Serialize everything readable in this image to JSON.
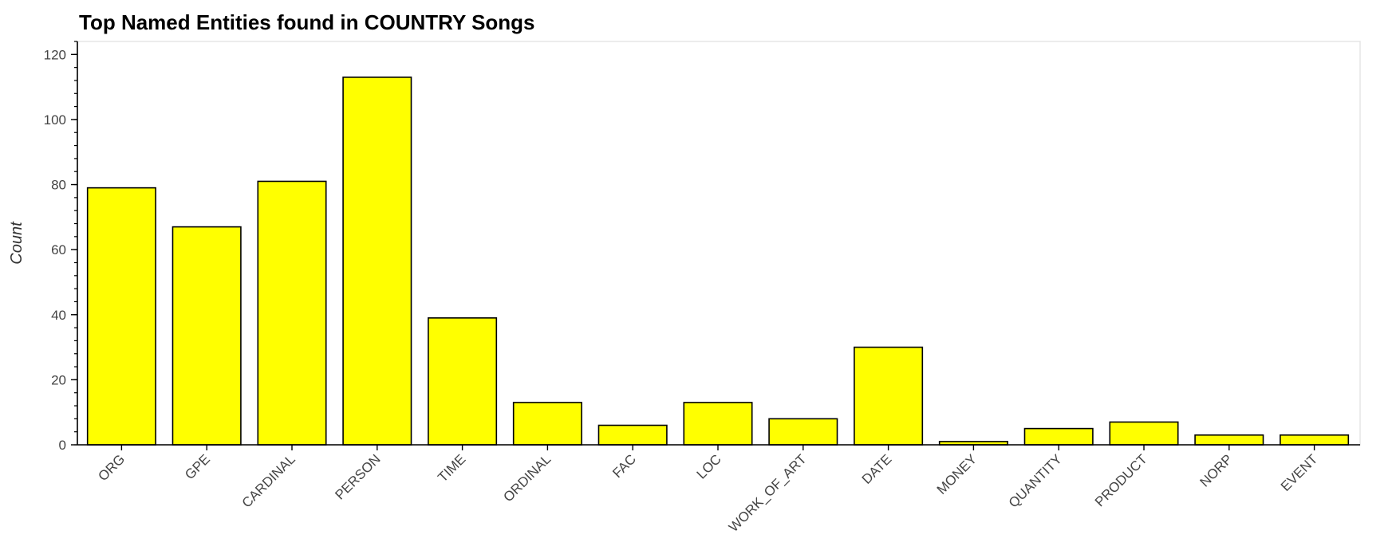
{
  "chart_data": {
    "type": "bar",
    "title": "Top Named Entities found in COUNTRY Songs",
    "xlabel": "",
    "ylabel": "Count",
    "categories": [
      "ORG",
      "GPE",
      "CARDINAL",
      "PERSON",
      "TIME",
      "ORDINAL",
      "FAC",
      "LOC",
      "WORK_OF_ART",
      "DATE",
      "MONEY",
      "QUANTITY",
      "PRODUCT",
      "NORP",
      "EVENT"
    ],
    "values": [
      79,
      67,
      81,
      113,
      39,
      13,
      6,
      13,
      8,
      30,
      1,
      5,
      7,
      3,
      3
    ],
    "ylim": [
      0,
      124
    ],
    "yticks": [
      0,
      20,
      40,
      60,
      80,
      100,
      120
    ],
    "grid": false,
    "bar_color": "#ffff00",
    "bar_outline_color": "#000000"
  }
}
